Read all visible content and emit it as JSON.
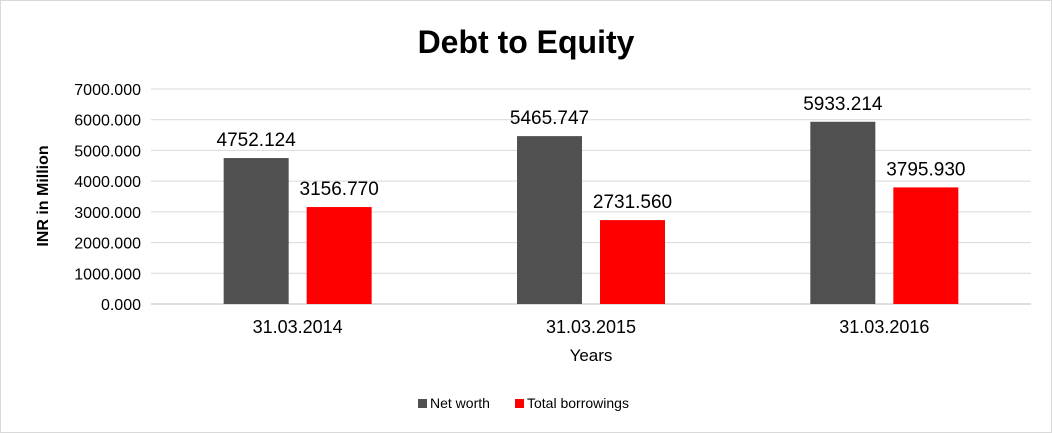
{
  "chart_data": {
    "type": "bar",
    "title": "Debt to Equity",
    "xlabel": "Years",
    "ylabel": "INR in Million",
    "categories": [
      "31.03.2014",
      "31.03.2015",
      "31.03.2016"
    ],
    "series": [
      {
        "name": "Net worth",
        "color": "#505050",
        "values": [
          4752.124,
          5465.747,
          5933.214
        ],
        "labels": [
          "4752.124",
          "5465.747",
          "5933.214"
        ]
      },
      {
        "name": "Total borrowings",
        "color": "#ff0000",
        "values": [
          3156.77,
          2731.56,
          3795.93
        ],
        "labels": [
          "3156.770",
          "2731.560",
          "3795.930"
        ]
      }
    ],
    "ylim": [
      0,
      7000
    ],
    "yticks": [
      "0.000",
      "1000.000",
      "2000.000",
      "3000.000",
      "4000.000",
      "5000.000",
      "6000.000",
      "7000.000"
    ],
    "grid": true,
    "legend_position": "bottom"
  }
}
